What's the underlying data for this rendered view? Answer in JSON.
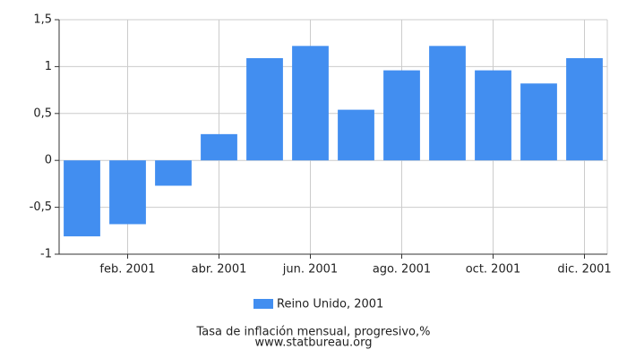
{
  "chart_data": {
    "type": "bar",
    "title": "Tasa de inflación mensual, progresivo,%",
    "subtitle": "www.statbureau.org",
    "categories": [
      null,
      "feb. 2001",
      null,
      "abr. 2001",
      null,
      "jun. 2001",
      null,
      "ago. 2001",
      null,
      "oct. 2001",
      null,
      "dic. 2001"
    ],
    "series": [
      {
        "name": "Reino Unido, 2001",
        "color": "#428ef0",
        "values": [
          -0.81,
          -0.68,
          -0.27,
          0.28,
          1.09,
          1.22,
          0.54,
          0.96,
          1.22,
          0.96,
          0.82,
          1.09
        ]
      }
    ],
    "ylim": [
      -1,
      1.5
    ],
    "yticks": [
      -1,
      {
        "value": -0.5,
        "label": "-0,5"
      },
      0,
      {
        "value": 0.5,
        "label": "0,5"
      },
      1,
      {
        "value": 1.5,
        "label": "1,5"
      }
    ],
    "grid": true
  }
}
